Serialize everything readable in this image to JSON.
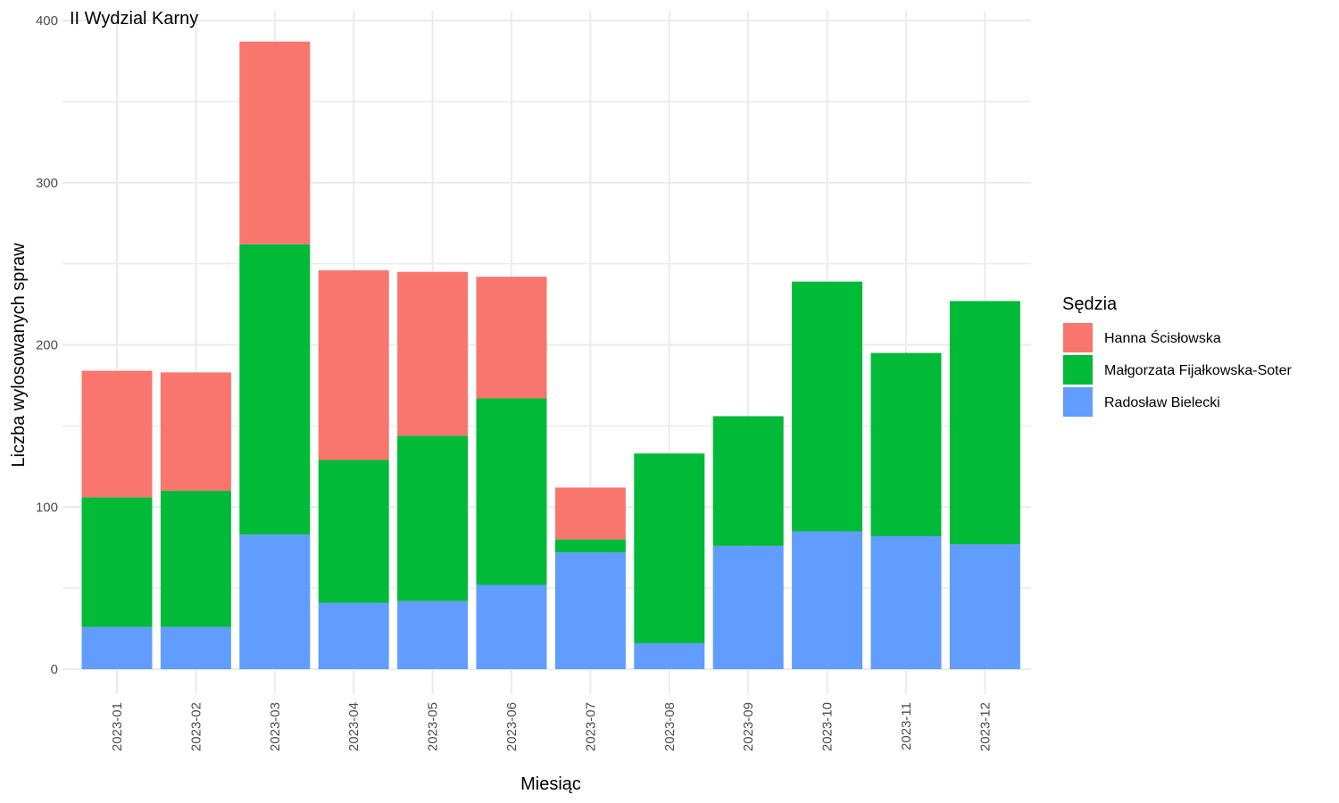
{
  "chart_data": {
    "type": "bar",
    "stacked": true,
    "title": "II Wydzial Karny",
    "xlabel": "Miesiąc",
    "ylabel": "Liczba wylosowanych spraw",
    "ylim": [
      0,
      400
    ],
    "yticks": [
      0,
      100,
      200,
      300,
      400
    ],
    "grid": true,
    "legend_title": "Sędzia",
    "legend_position": "right",
    "categories": [
      "2023-01",
      "2023-02",
      "2023-03",
      "2023-04",
      "2023-05",
      "2023-06",
      "2023-07",
      "2023-08",
      "2023-09",
      "2023-10",
      "2023-11",
      "2023-12"
    ],
    "series": [
      {
        "name": "Hanna Ścisłowska",
        "color": "#F8766D",
        "values": [
          78,
          73,
          125,
          117,
          101,
          75,
          32,
          0,
          0,
          0,
          0,
          0
        ]
      },
      {
        "name": "Małgorzata Fijałkowska-Soter",
        "color": "#00BA38",
        "values": [
          80,
          84,
          179,
          88,
          102,
          115,
          8,
          117,
          80,
          154,
          113,
          150
        ]
      },
      {
        "name": "Radosław Bielecki",
        "color": "#619CFF",
        "values": [
          26,
          26,
          83,
          41,
          42,
          52,
          72,
          16,
          76,
          85,
          82,
          77
        ]
      }
    ]
  }
}
